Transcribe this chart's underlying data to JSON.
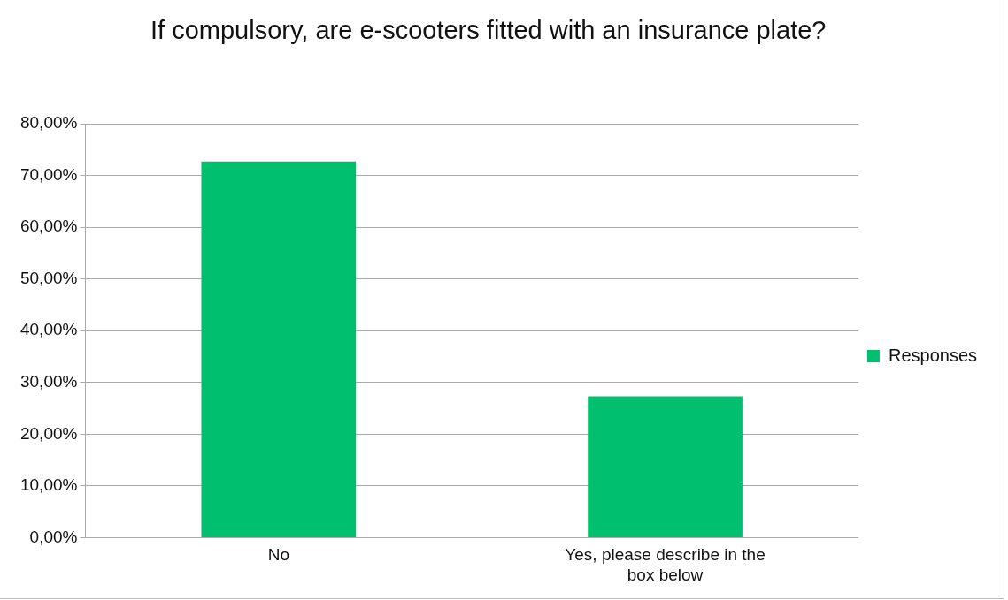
{
  "chart_data": {
    "type": "bar",
    "title": "If compulsory, are e-scooters fitted with an insurance plate?",
    "categories": [
      "No",
      "Yes, please describe in the box below"
    ],
    "series": [
      {
        "name": "Responses",
        "color": "#00bf6f",
        "values": [
          72.7,
          27.3
        ]
      }
    ],
    "ylim": [
      0,
      80
    ],
    "yticks": [
      {
        "value": 0,
        "label": "0,00%"
      },
      {
        "value": 10,
        "label": "10,00%"
      },
      {
        "value": 20,
        "label": "20,00%"
      },
      {
        "value": 30,
        "label": "30,00%"
      },
      {
        "value": 40,
        "label": "40,00%"
      },
      {
        "value": 50,
        "label": "50,00%"
      },
      {
        "value": 60,
        "label": "60,00%"
      },
      {
        "value": 70,
        "label": "70,00%"
      },
      {
        "value": 80,
        "label": "80,00%"
      }
    ],
    "grid": "y",
    "legend": "right"
  }
}
